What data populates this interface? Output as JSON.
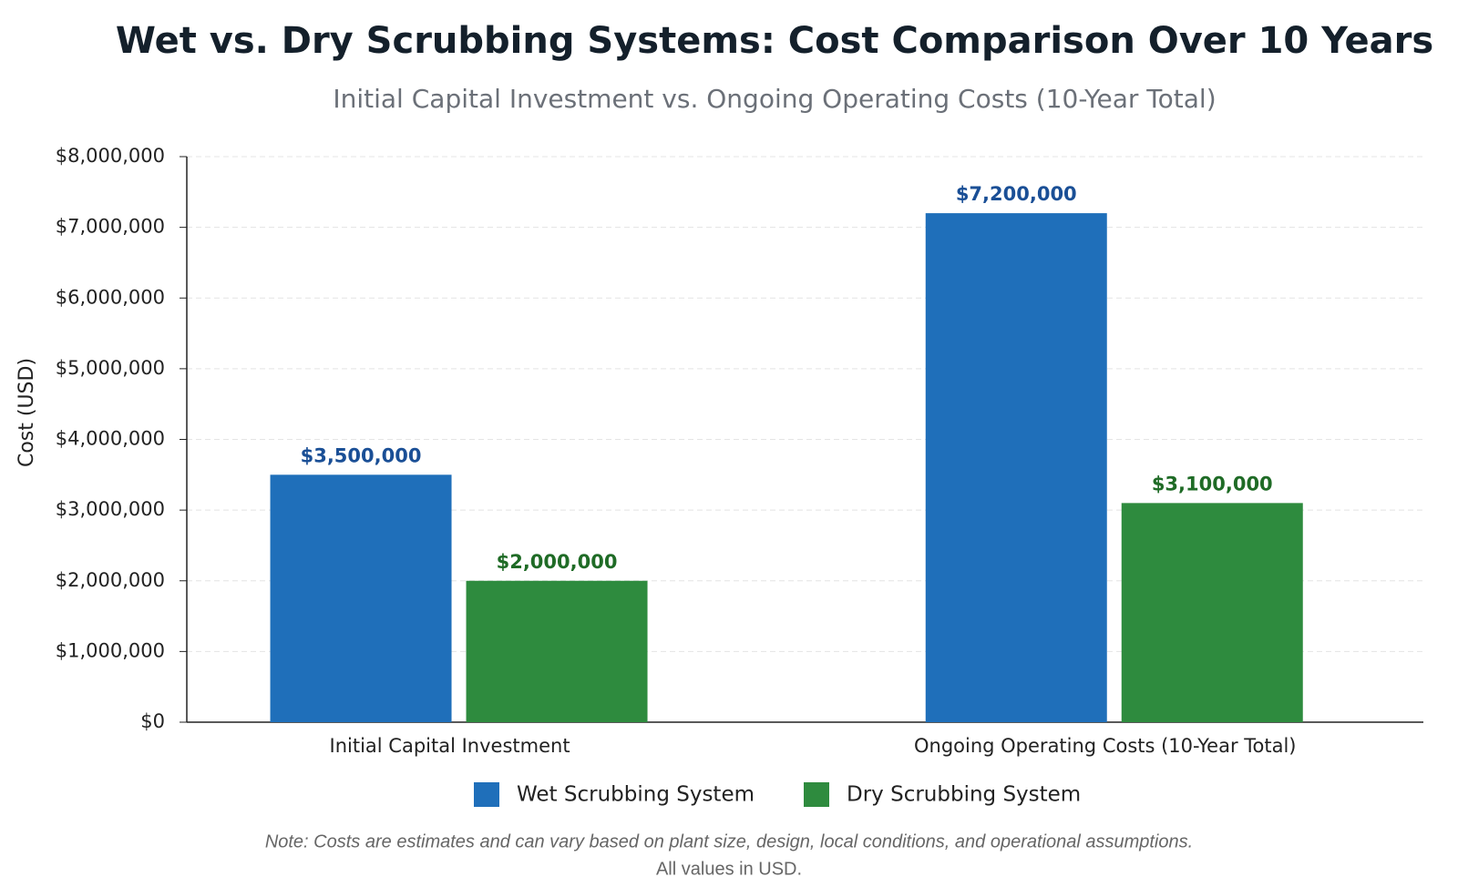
{
  "chart_data": {
    "type": "bar",
    "title": "Wet vs. Dry Scrubbing Systems: Cost Comparison Over 10 Years",
    "subtitle": "Initial Capital Investment vs. Ongoing Operating Costs (10-Year Total)",
    "y_label": "Cost (USD)",
    "categories": [
      "Initial Capital Investment",
      "Ongoing Operating Costs (10-Year Total)"
    ],
    "series": [
      {
        "name": "Wet Scrubbing System",
        "color": "#1f6fba",
        "label_color": "#1a4f96",
        "values": [
          3500000,
          7200000
        ],
        "value_labels": [
          "$3,500,000",
          "$7,200,000"
        ]
      },
      {
        "name": "Dry Scrubbing System",
        "color": "#2e8b3e",
        "label_color": "#1f6b26",
        "values": [
          2000000,
          3100000
        ],
        "value_labels": [
          "$2,000,000",
          "$3,100,000"
        ]
      }
    ],
    "ylim": [
      0,
      8000000
    ],
    "yticks": [
      {
        "value": 0,
        "label": "$0"
      },
      {
        "value": 1000000,
        "label": "$1,000,000"
      },
      {
        "value": 2000000,
        "label": "$2,000,000"
      },
      {
        "value": 3000000,
        "label": "$3,000,000"
      },
      {
        "value": 4000000,
        "label": "$4,000,000"
      },
      {
        "value": 5000000,
        "label": "$5,000,000"
      },
      {
        "value": 6000000,
        "label": "$6,000,000"
      },
      {
        "value": 7000000,
        "label": "$7,000,000"
      },
      {
        "value": 8000000,
        "label": "$8,000,000"
      }
    ],
    "grid": true,
    "notes": [
      "Note: Costs are estimates and can vary based on plant size, design, local conditions, and operational assumptions.",
      "All values in USD."
    ]
  }
}
